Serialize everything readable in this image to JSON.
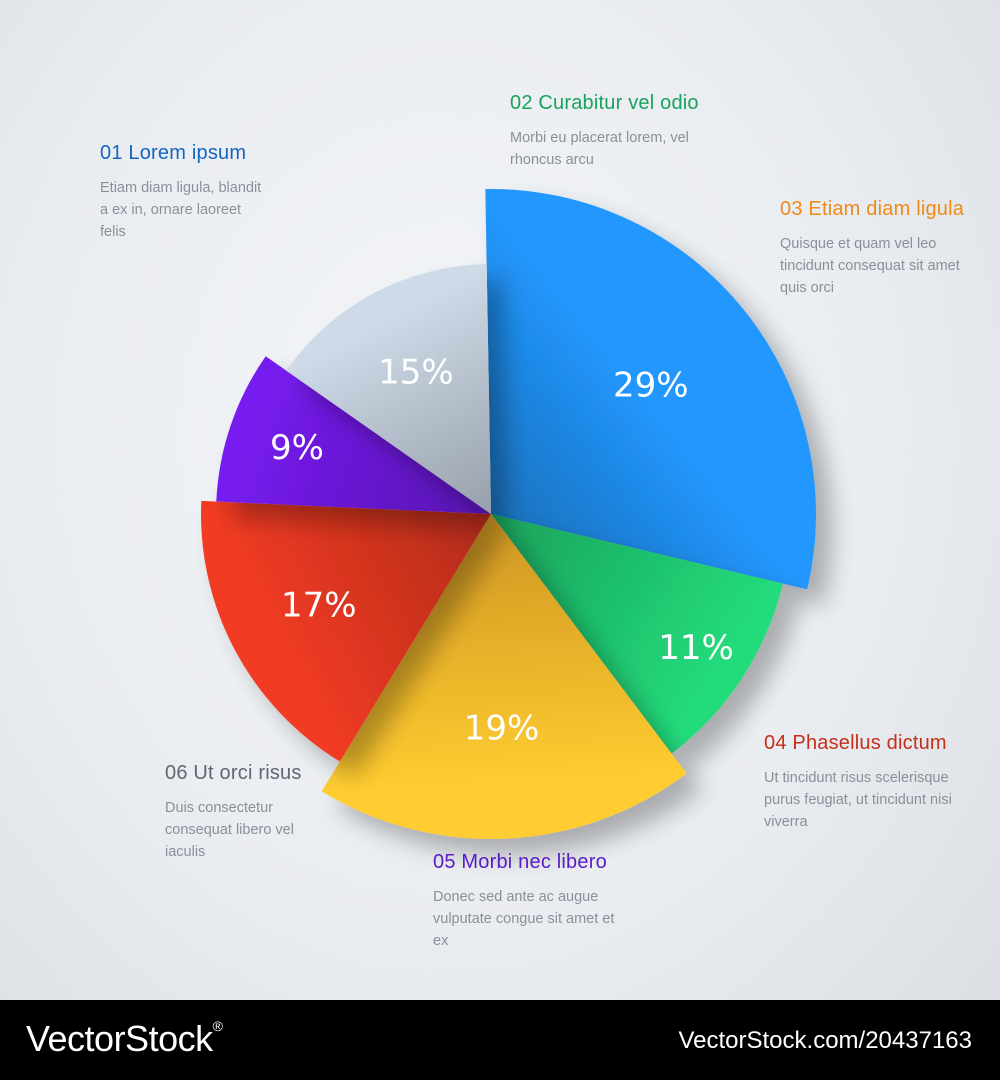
{
  "chart_data": {
    "type": "pie",
    "slices": [
      {
        "label": "01 Lorem ipsum",
        "value": 29,
        "value_label": "29%",
        "description": "Etiam diam ligula, blandit a ex in, ornare laoreet felis",
        "color": "#1e88e5"
      },
      {
        "label": "02 Curabitur vel odio",
        "value": 11,
        "value_label": "11%",
        "description": "Morbi eu placerat lorem, vel rhoncus arcu",
        "color": "#1fc46f"
      },
      {
        "label": "03 Etiam diam ligula",
        "value": 19,
        "value_label": "19%",
        "description": "Quisque et quam vel leo tincidunt consequat sit amet quis orci",
        "color": "#fbb62b"
      },
      {
        "label": "04 Phasellus dictum",
        "value": 17,
        "value_label": "17%",
        "description": "Ut tincidunt risus scelerisque purus feugiat, ut tincidunt nisi viverra",
        "color": "#d7351f"
      },
      {
        "label": "05 Morbi nec libero",
        "value": 9,
        "value_label": "9%",
        "description": "Donec sed ante ac augue vulputate congue sit amet et ex",
        "color": "#6a18d6"
      },
      {
        "label": "06 Ut orci risus",
        "value": 15,
        "value_label": "15%",
        "description": "Duis consectetur consequat libero vel iaculis",
        "color": "#b8c3cf"
      }
    ],
    "legend_title_colors": [
      "#1565c0",
      "#17a35c",
      "#ef8a16",
      "#c62e19",
      "#5a1ac8",
      "#5e6772"
    ]
  },
  "watermark": {
    "logo": "VectorStock",
    "logo_registered": "®",
    "id_text": "VectorStock.com/20437163"
  }
}
